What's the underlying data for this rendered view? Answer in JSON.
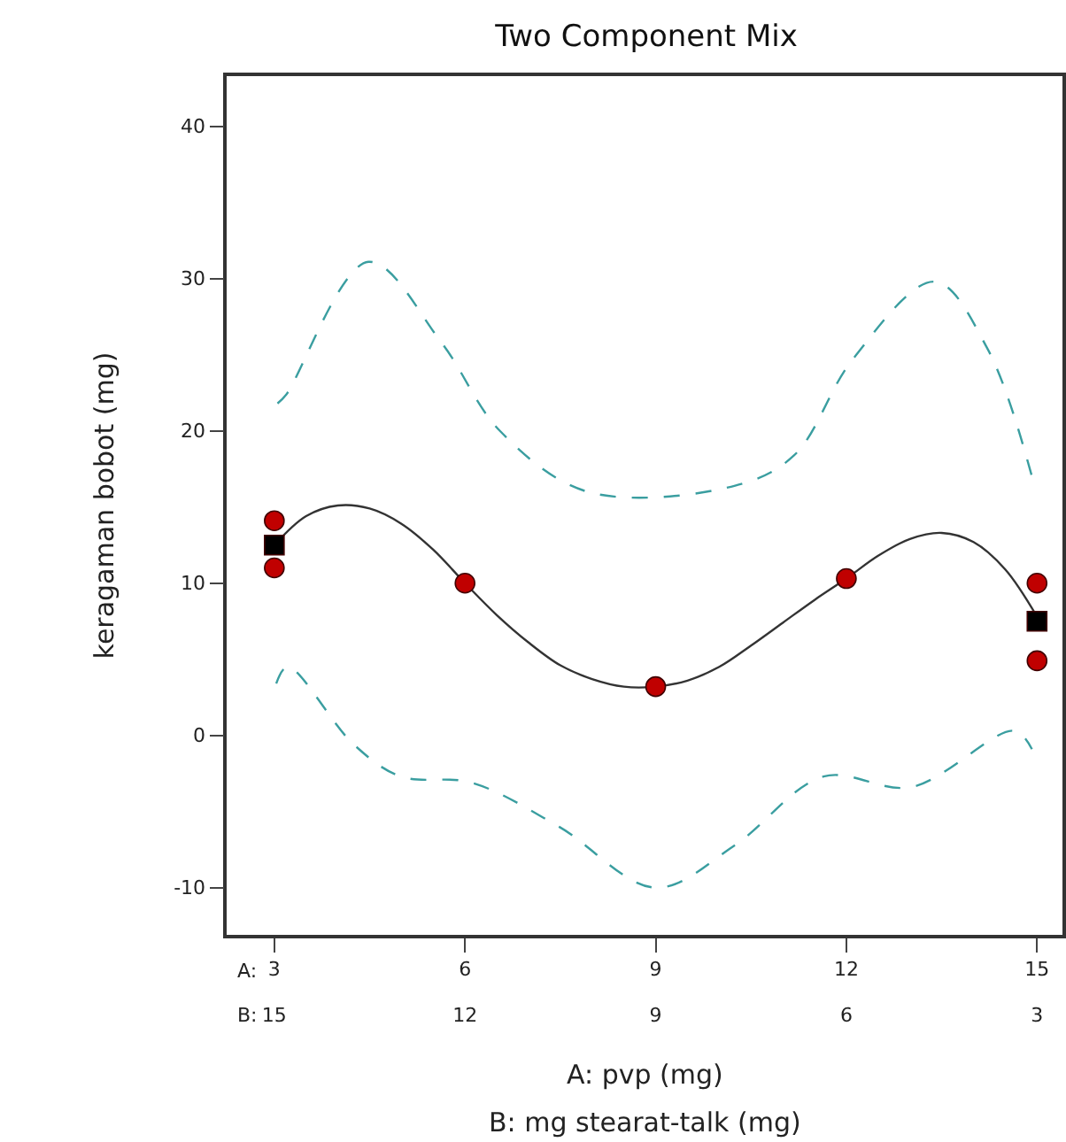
{
  "chart_data": {
    "type": "line",
    "title": "Two Component Mix",
    "xlabel": "A: pvp (mg)",
    "x2label": "B: mg stearat-talk (mg)",
    "ylabel": "keragaman bobot (mg)",
    "xlim": [
      2.25,
      15.4
    ],
    "xticks": [
      3,
      6,
      9,
      12,
      15
    ],
    "x2lim": [
      15.75,
      2.6
    ],
    "x2ticks": [
      15,
      12,
      9,
      6,
      3
    ],
    "ylim": [
      -13.1,
      43.3
    ],
    "yticks": [
      -10,
      0,
      10,
      20,
      30,
      40
    ],
    "annotations": [
      "A:",
      "B:"
    ],
    "series": [
      {
        "type": "line",
        "color": "#3a9ea0",
        "line_style": "dashed",
        "marker": "none",
        "x": [
          3.05,
          3.19,
          4.48,
          5.63,
          6.55,
          7.93,
          10.25,
          11.18,
          12.1,
          13.39,
          14.22,
          14.92
        ],
        "values": [
          21.8,
          22.4,
          31.1,
          25.8,
          20.0,
          16.0,
          16.4,
          18.4,
          24.7,
          29.8,
          25.4,
          17.0
        ]
      },
      {
        "type": "line",
        "color": "#3a9ea0",
        "line_style": "dashed",
        "marker": "none",
        "x": [
          3.03,
          3.21,
          4.25,
          4.99,
          6.1,
          7.48,
          9.0,
          10.25,
          11.64,
          13.02,
          14.64,
          14.92
        ],
        "values": [
          3.4,
          4.5,
          -0.6,
          -2.7,
          -3.1,
          -6.0,
          -10.0,
          -7.2,
          -2.7,
          -3.4,
          0.3,
          -0.9
        ]
      },
      {
        "color": "#333333",
        "line_style": "solid",
        "marker": "none",
        "x": [
          3,
          3.5,
          4,
          4.5,
          5,
          5.5,
          6,
          6.5,
          7,
          7.5,
          8,
          8.5,
          9,
          9.5,
          10,
          10.5,
          11,
          11.5,
          12,
          12.5,
          13,
          13.5,
          14,
          14.5,
          15
        ],
        "values": [
          12.5,
          14.4,
          15.1,
          14.9,
          13.9,
          12.2,
          10,
          7.9,
          6.1,
          4.6,
          3.7,
          3.2,
          3.2,
          3.6,
          4.5,
          5.9,
          7.4,
          8.9,
          10.3,
          11.8,
          12.9,
          13.3,
          12.7,
          10.9,
          7.8
        ]
      },
      {
        "type": "scatter",
        "color": "#c00000",
        "marker": "circle",
        "x": [
          3,
          3,
          6,
          9,
          12,
          15,
          15
        ],
        "values": [
          14.1,
          11,
          10,
          3.2,
          10.3,
          10,
          4.9
        ]
      },
      {
        "type": "scatter",
        "color": "#000000",
        "marker": "square",
        "x": [
          3,
          15
        ],
        "values": [
          12.5,
          7.5
        ]
      }
    ]
  }
}
